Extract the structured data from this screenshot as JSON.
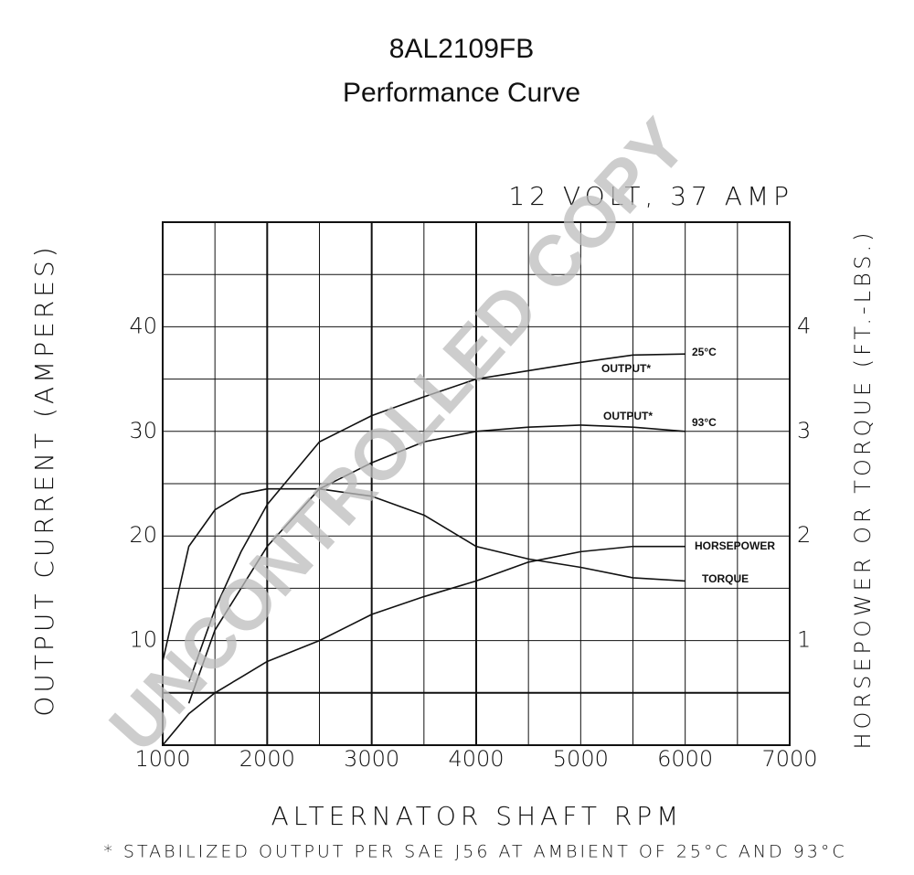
{
  "chart_data": {
    "type": "line",
    "title": "8AL2109FB",
    "subtitle": "Performance Curve",
    "rating": "12 VOLT, 37 AMP",
    "x_label": "ALTERNATOR SHAFT RPM",
    "y_label": "OUTPUT CURRENT (AMPERES)",
    "y2_label": "HORSEPOWER OR TORQUE (FT.-LBS.)",
    "footnote": "* STABILIZED OUTPUT PER SAE J56 AT AMBIENT OF 25°C AND 93°C",
    "watermark": "UNCONTROLLED COPY",
    "annotations": [
      "25°C",
      "93°C"
    ],
    "x": [
      1000,
      1250,
      1500,
      1750,
      2000,
      2500,
      3000,
      3500,
      4000,
      4500,
      5000,
      5500,
      6000
    ],
    "series": [
      {
        "name": "OUTPUT*",
        "color": "#111111",
        "values": [
          null,
          6,
          13,
          18.5,
          23,
          29,
          31.5,
          33.3,
          35,
          35.8,
          36.6,
          37.3,
          37.4
        ]
      },
      {
        "name": "OUTPUT*",
        "color": "#111111",
        "values": [
          null,
          4,
          11,
          15,
          19,
          24.5,
          27,
          29,
          30,
          30.4,
          30.6,
          30.4,
          30
        ]
      },
      {
        "name": "HORSEPOWER",
        "color": "#111111",
        "axis": "y2",
        "values": [
          0,
          0.3,
          0.5,
          0.65,
          0.8,
          1.0,
          1.25,
          1.42,
          1.57,
          1.75,
          1.85,
          1.9,
          1.9
        ]
      },
      {
        "name": "TORQUE",
        "color": "#111111",
        "axis": "y2",
        "values": [
          0.8,
          1.9,
          2.25,
          2.4,
          2.45,
          2.45,
          2.38,
          2.2,
          1.9,
          1.78,
          1.7,
          1.6,
          1.57
        ]
      }
    ],
    "xlim": [
      1000,
      7000
    ],
    "xticks": [
      1000,
      2000,
      3000,
      4000,
      5000,
      6000,
      7000
    ],
    "ylim": [
      0,
      50
    ],
    "yticks": [
      10,
      20,
      30,
      40
    ],
    "y2lim": [
      0,
      5
    ],
    "y2ticks": [
      1,
      2,
      3,
      4
    ],
    "grid": true
  }
}
